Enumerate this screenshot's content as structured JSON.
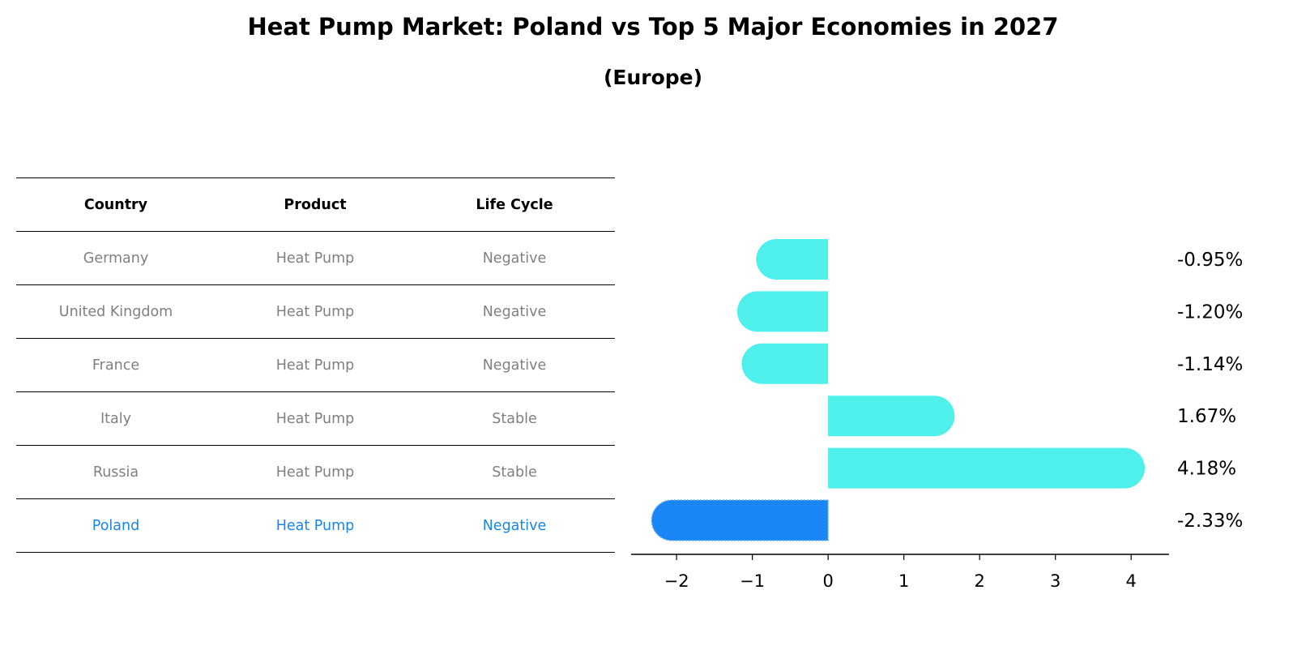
{
  "title": "Heat Pump Market: Poland vs Top 5 Major Economies in 2027",
  "subtitle": "(Europe)",
  "table": {
    "headers": [
      "Country",
      "Product",
      "Life Cycle"
    ],
    "rows": [
      [
        "Germany",
        "Heat Pump",
        "Negative"
      ],
      [
        "United Kingdom",
        "Heat Pump",
        "Negative"
      ],
      [
        "France",
        "Heat Pump",
        "Negative"
      ],
      [
        "Italy",
        "Heat Pump",
        "Stable"
      ],
      [
        "Russia",
        "Heat Pump",
        "Stable"
      ],
      [
        "Poland",
        "Heat Pump",
        "Negative"
      ]
    ],
    "highlight_row": 5
  },
  "chart_data": {
    "type": "bar",
    "orientation": "horizontal",
    "categories": [
      "Germany",
      "United Kingdom",
      "France",
      "Italy",
      "Russia",
      "Poland"
    ],
    "values": [
      -0.95,
      -1.2,
      -1.14,
      1.67,
      4.18,
      -2.33
    ],
    "labels": [
      "-0.95%",
      "-1.20%",
      "-1.14%",
      "1.67%",
      "4.18%",
      "-2.33%"
    ],
    "highlight_index": 5,
    "colors": {
      "default": "#4ff0eb",
      "highlight": "#1a86f5"
    },
    "xlim": [
      -2.6,
      4.5
    ],
    "xticks": [
      -2,
      -1,
      0,
      1,
      2,
      3,
      4
    ],
    "xtick_labels": [
      "−2",
      "−1",
      "0",
      "1",
      "2",
      "3",
      "4"
    ],
    "grid": false
  }
}
